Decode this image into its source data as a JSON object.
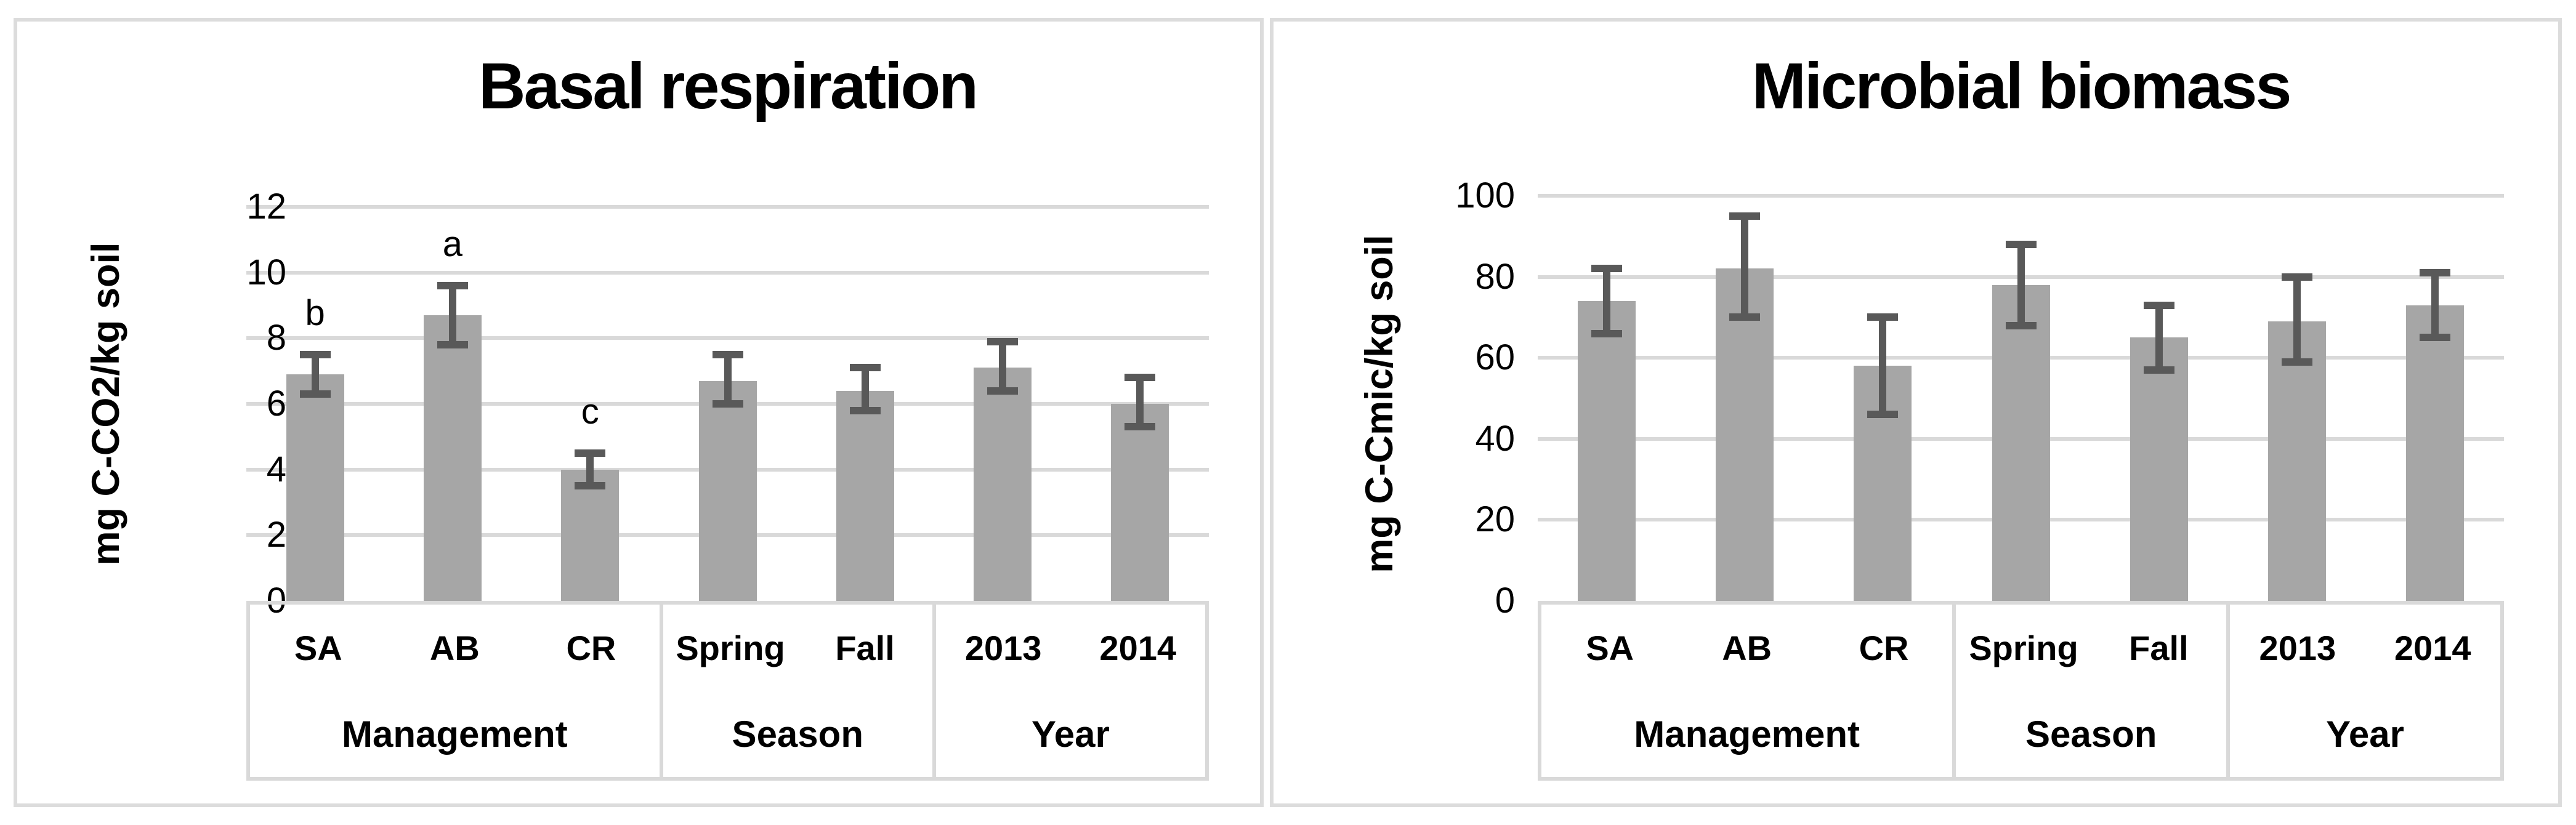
{
  "colors": {
    "bar_fill": "#a6a6a6",
    "error_bar": "#595959",
    "gridline": "#d9d9d9",
    "panel_border": "#dcdcdc",
    "text": "#000000",
    "background": "#ffffff"
  },
  "chart_data": [
    {
      "type": "bar",
      "title": "Basal respiration",
      "ylabel": "mg C-CO2/kg soil",
      "xlabel": "",
      "ylim": [
        0,
        12
      ],
      "yticks": [
        0,
        2,
        4,
        6,
        8,
        10,
        12
      ],
      "grid": true,
      "legend": "none",
      "bar_color": "#a6a6a6",
      "error_bar_color": "#595959",
      "groups": [
        {
          "label": "Management",
          "categories": [
            "SA",
            "AB",
            "CR"
          ],
          "values": [
            6.9,
            8.7,
            4.0
          ],
          "error_low": [
            6.3,
            7.8,
            3.5
          ],
          "error_high": [
            7.5,
            9.6,
            4.5
          ],
          "letters": [
            "b",
            "a",
            "c"
          ]
        },
        {
          "label": "Season",
          "categories": [
            "Spring",
            "Fall"
          ],
          "values": [
            6.7,
            6.4
          ],
          "error_low": [
            6.0,
            5.8
          ],
          "error_high": [
            7.5,
            7.1
          ],
          "letters": [
            "",
            ""
          ]
        },
        {
          "label": "Year",
          "categories": [
            "2013",
            "2014"
          ],
          "values": [
            7.1,
            6.0
          ],
          "error_low": [
            6.4,
            5.3
          ],
          "error_high": [
            7.9,
            6.8
          ],
          "letters": [
            "",
            ""
          ]
        }
      ]
    },
    {
      "type": "bar",
      "title": "Microbial biomass",
      "ylabel": "mg C-Cmic/kg soil",
      "xlabel": "",
      "ylim": [
        0,
        100
      ],
      "yticks": [
        0,
        20,
        40,
        60,
        80,
        100
      ],
      "grid": true,
      "legend": "none",
      "bar_color": "#a6a6a6",
      "error_bar_color": "#595959",
      "groups": [
        {
          "label": "Management",
          "categories": [
            "SA",
            "AB",
            "CR"
          ],
          "values": [
            74,
            82,
            58
          ],
          "error_low": [
            66,
            70,
            46
          ],
          "error_high": [
            82,
            95,
            70
          ],
          "letters": [
            "",
            "",
            ""
          ]
        },
        {
          "label": "Season",
          "categories": [
            "Spring",
            "Fall"
          ],
          "values": [
            78,
            65
          ],
          "error_low": [
            68,
            57
          ],
          "error_high": [
            88,
            73
          ],
          "letters": [
            "",
            ""
          ]
        },
        {
          "label": "Year",
          "categories": [
            "2013",
            "2014"
          ],
          "values": [
            69,
            73
          ],
          "error_low": [
            59,
            65
          ],
          "error_high": [
            80,
            81
          ],
          "letters": [
            "",
            ""
          ]
        }
      ]
    }
  ]
}
